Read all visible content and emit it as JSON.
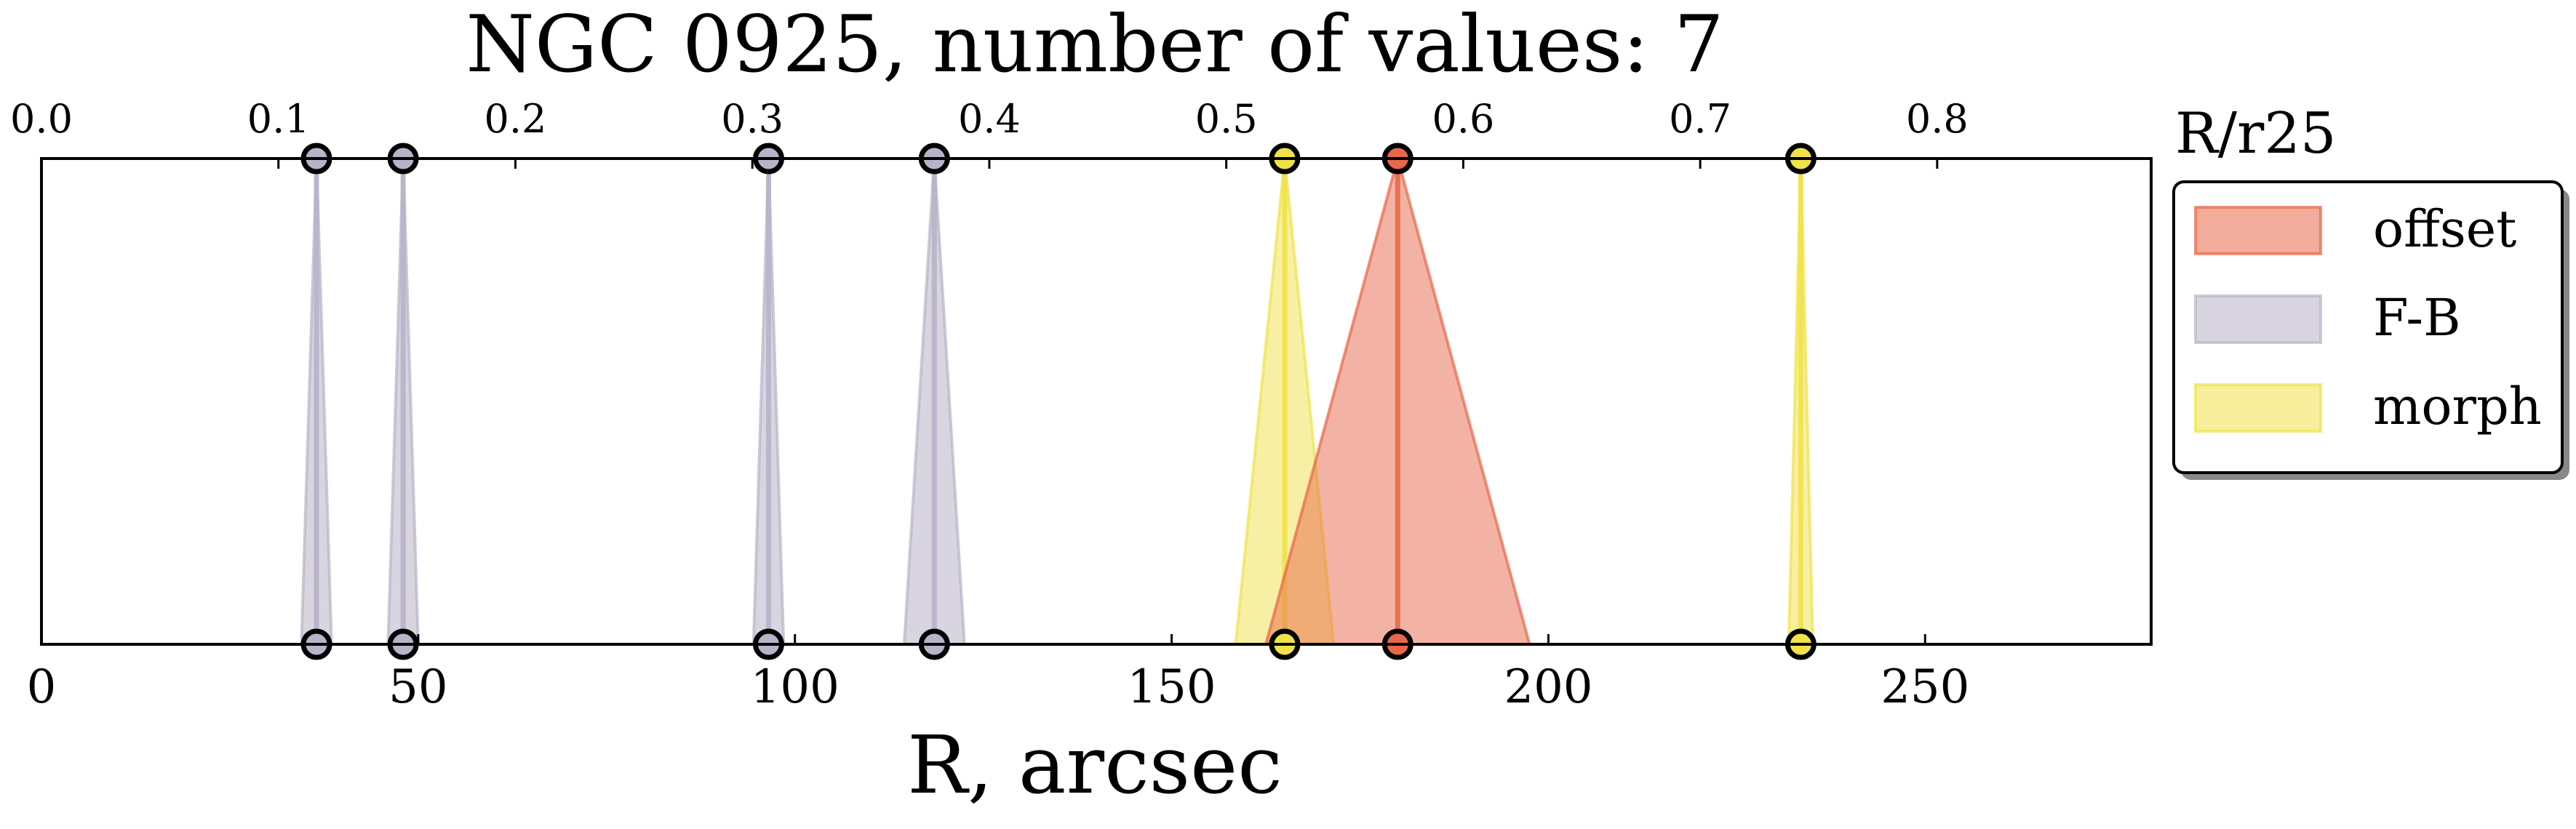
{
  "chart_data": {
    "type": "area",
    "title": "NGC 0925, number of values: 7",
    "xlabel": "R, arcsec",
    "top_axis_label": "R/r25",
    "xlim": [
      0,
      280
    ],
    "bottom_ticks": [
      {
        "value": 0,
        "label": "0"
      },
      {
        "value": 50,
        "label": "50"
      },
      {
        "value": 100,
        "label": "100"
      },
      {
        "value": 150,
        "label": "150"
      },
      {
        "value": 200,
        "label": "200"
      },
      {
        "value": 250,
        "label": "250"
      }
    ],
    "top_ticks": [
      {
        "value": 0.0,
        "label": "0.0"
      },
      {
        "value": 0.1,
        "label": "0.1"
      },
      {
        "value": 0.2,
        "label": "0.2"
      },
      {
        "value": 0.3,
        "label": "0.3"
      },
      {
        "value": 0.4,
        "label": "0.4"
      },
      {
        "value": 0.5,
        "label": "0.5"
      },
      {
        "value": 0.6,
        "label": "0.6"
      },
      {
        "value": 0.7,
        "label": "0.7"
      },
      {
        "value": 0.8,
        "label": "0.8"
      }
    ],
    "r25_arcsec": 314.5,
    "legend": {
      "position": "right-outside",
      "entries": [
        {
          "name": "offset",
          "color": "#e8674a"
        },
        {
          "name": "F-B",
          "color": "#b8b3c8"
        },
        {
          "name": "morph",
          "color": "#f0e24a"
        }
      ]
    },
    "markers": [
      {
        "method": "F-B",
        "r": 36.5,
        "err": 2
      },
      {
        "method": "F-B",
        "r": 48,
        "err": 2
      },
      {
        "method": "F-B",
        "r": 96.5,
        "err": 2
      },
      {
        "method": "F-B",
        "r": 118.5,
        "err": 4
      },
      {
        "method": "morph",
        "r": 165,
        "err": 6.5
      },
      {
        "method": "offset",
        "r": 180,
        "err": 17.5
      },
      {
        "method": "morph",
        "r": 233.5,
        "err": 0
      }
    ],
    "grid": false
  }
}
